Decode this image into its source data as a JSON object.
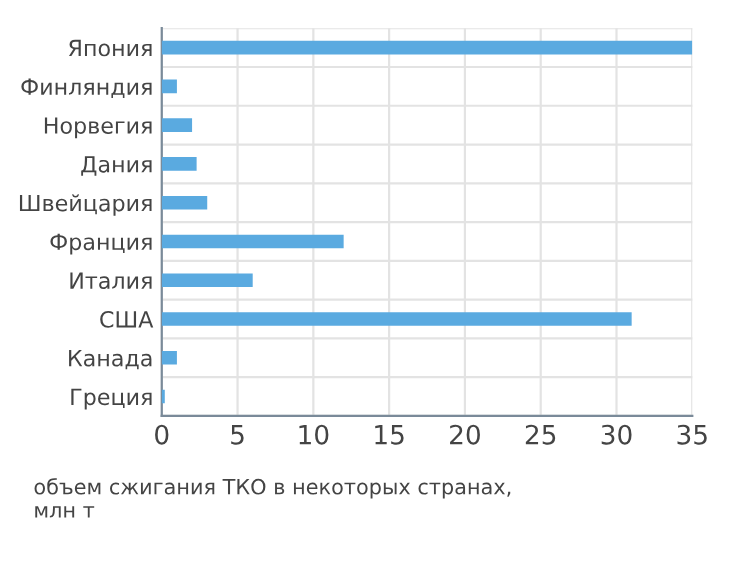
{
  "chart_data": {
    "type": "bar",
    "orientation": "horizontal",
    "categories": [
      "Япония",
      "Финляндия",
      "Норвегия",
      "Дания",
      "Швейцария",
      "Франция",
      "Италия",
      "США",
      "Канада",
      "Греция"
    ],
    "values": [
      35,
      1,
      2,
      2.3,
      3,
      12,
      6,
      31,
      1,
      0.2
    ],
    "color": "#5aaae0",
    "xlim": [
      0,
      35
    ],
    "xticks": [
      0,
      5,
      10,
      15,
      20,
      25,
      30,
      35
    ],
    "grid": true,
    "annotations": [
      "объем сжигания ТКО в некоторых странах,\nмлн т"
    ]
  }
}
